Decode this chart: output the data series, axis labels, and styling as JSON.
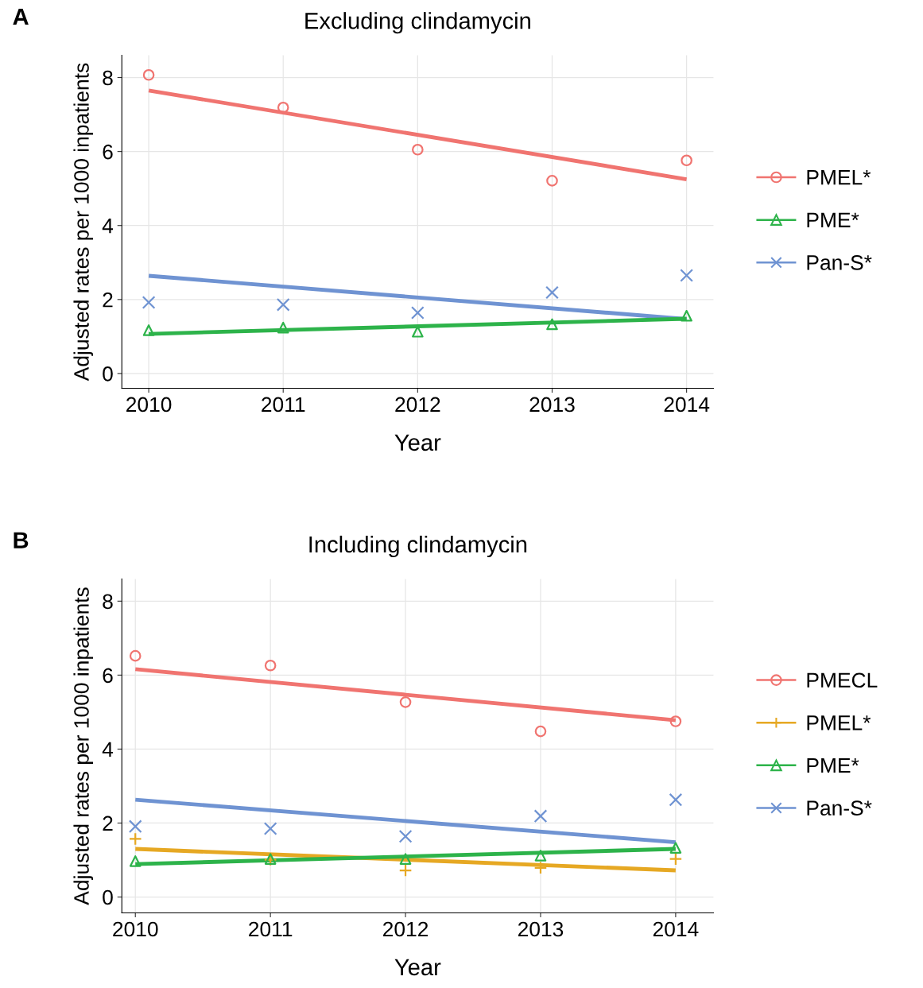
{
  "chart_data": [
    {
      "type": "scatter",
      "title": "Excluding clindamycin",
      "xlabel": "Year",
      "ylabel": "Adjusted rates per 1000 inpatients",
      "annotations": [
        "A"
      ],
      "x": [
        2010,
        2011,
        2012,
        2013,
        2014
      ],
      "xlim": [
        2009.8,
        2014.2
      ],
      "xticks": [
        2010,
        2011,
        2012,
        2013,
        2014
      ],
      "ylim": [
        -0.4,
        8.6
      ],
      "yticks": [
        0,
        2,
        4,
        6,
        8
      ],
      "grid": true,
      "legend": "right",
      "series": [
        {
          "name": "PMEL*",
          "color": "#f07470",
          "marker": "circle",
          "values": [
            8.07,
            7.19,
            6.05,
            5.21,
            5.76
          ]
        },
        {
          "name": "PME*",
          "color": "#2db34a",
          "marker": "triangle",
          "values": [
            1.17,
            1.24,
            1.13,
            1.33,
            1.56
          ]
        },
        {
          "name": "Pan-S*",
          "color": "#6f93d2",
          "marker": "cross",
          "values": [
            1.92,
            1.86,
            1.64,
            2.19,
            2.65
          ]
        },
        {
          "type": "line",
          "color": "#f07470",
          "values": [
            7.65,
            null,
            null,
            null,
            5.25
          ]
        },
        {
          "type": "line",
          "color": "#6f93d2",
          "values": [
            2.64,
            null,
            null,
            null,
            1.47
          ]
        },
        {
          "type": "line",
          "color": "#2db34a",
          "values": [
            1.07,
            null,
            null,
            null,
            1.48
          ]
        }
      ]
    },
    {
      "type": "scatter",
      "title": "Including clindamycin",
      "xlabel": "Year",
      "ylabel": "Adjusted rates per 1000 inpatients",
      "annotations": [
        "B"
      ],
      "x": [
        2010,
        2011,
        2012,
        2013,
        2014
      ],
      "xlim": [
        2009.9,
        2014.28
      ],
      "xticks": [
        2010,
        2011,
        2012,
        2013,
        2014
      ],
      "ylim": [
        -0.43,
        8.6
      ],
      "yticks": [
        0,
        2,
        4,
        6,
        8
      ],
      "grid": true,
      "legend": "right",
      "series": [
        {
          "name": "PMECL",
          "color": "#f07470",
          "marker": "circle",
          "values": [
            6.52,
            6.26,
            5.27,
            4.48,
            4.75
          ]
        },
        {
          "name": "PMEL*",
          "color": "#e6a823",
          "marker": "plus",
          "values": [
            1.57,
            1.01,
            0.72,
            0.79,
            1.03
          ]
        },
        {
          "name": "PME*",
          "color": "#2db34a",
          "marker": "triangle",
          "values": [
            0.97,
            1.03,
            1.03,
            1.12,
            1.33
          ]
        },
        {
          "name": "Pan-S*",
          "color": "#6f93d2",
          "marker": "cross",
          "values": [
            1.91,
            1.85,
            1.64,
            2.19,
            2.63
          ]
        },
        {
          "type": "line",
          "color": "#f07470",
          "values": [
            6.16,
            null,
            null,
            null,
            4.78
          ]
        },
        {
          "type": "line",
          "color": "#6f93d2",
          "values": [
            2.63,
            null,
            null,
            null,
            1.48
          ]
        },
        {
          "type": "line",
          "color": "#e6a823",
          "values": [
            1.3,
            null,
            null,
            null,
            0.72
          ]
        },
        {
          "type": "line",
          "color": "#2db34a",
          "values": [
            0.89,
            null,
            null,
            null,
            1.3
          ]
        }
      ]
    }
  ]
}
